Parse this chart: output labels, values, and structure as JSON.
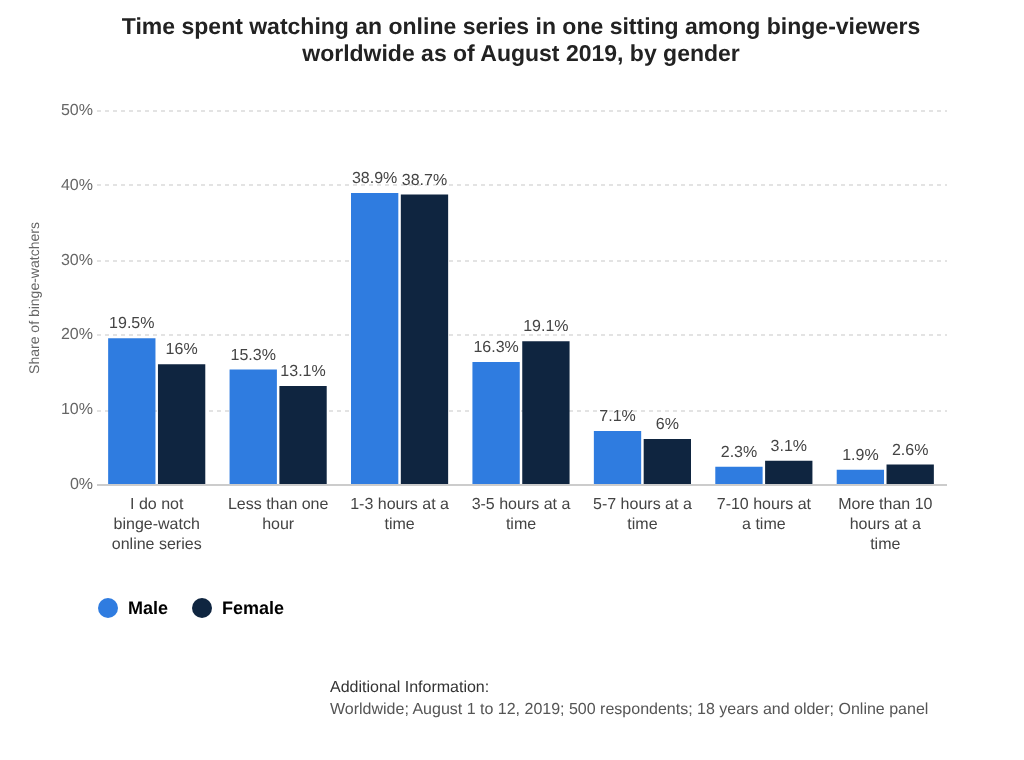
{
  "chart_data": {
    "type": "bar",
    "title": "Time spent watching an online series in one sitting among binge-viewers worldwide as of August 2019, by gender",
    "ylabel": "Share of binge-watchers",
    "categories": [
      "I do not binge-watch online series",
      "Less than one hour",
      "1-3 hours at a time",
      "3-5 hours at a time",
      "5-7 hours at a time",
      "7-10 hours at a time",
      "More than 10 hours at a time"
    ],
    "series": [
      {
        "name": "Male",
        "color": "#2f7ce0",
        "values": [
          19.5,
          15.3,
          38.9,
          16.3,
          7.1,
          2.3,
          1.9
        ],
        "value_labels": [
          "19.5%",
          "15.3%",
          "38.9%",
          "16.3%",
          "7.1%",
          "2.3%",
          "1.9%"
        ]
      },
      {
        "name": "Female",
        "color": "#0f2540",
        "values": [
          16,
          13.1,
          38.7,
          19.1,
          6,
          3.1,
          2.6
        ],
        "value_labels": [
          "16%",
          "13.1%",
          "38.7%",
          "19.1%",
          "6%",
          "3.1%",
          "2.6%"
        ]
      }
    ],
    "ylim": [
      0,
      50
    ],
    "yticks": [
      {
        "value": 0,
        "label": "0%"
      },
      {
        "value": 10,
        "label": "10%"
      },
      {
        "value": 20,
        "label": "20%"
      },
      {
        "value": 30,
        "label": "30%"
      },
      {
        "value": 40,
        "label": "40%"
      },
      {
        "value": 50,
        "label": "50%"
      }
    ],
    "grid": "y",
    "legend": "bottom",
    "annotations": [
      "Additional Information:",
      "Worldwide; August 1 to 12, 2019; 500 respondents; 18 years and older; Online panel"
    ]
  }
}
